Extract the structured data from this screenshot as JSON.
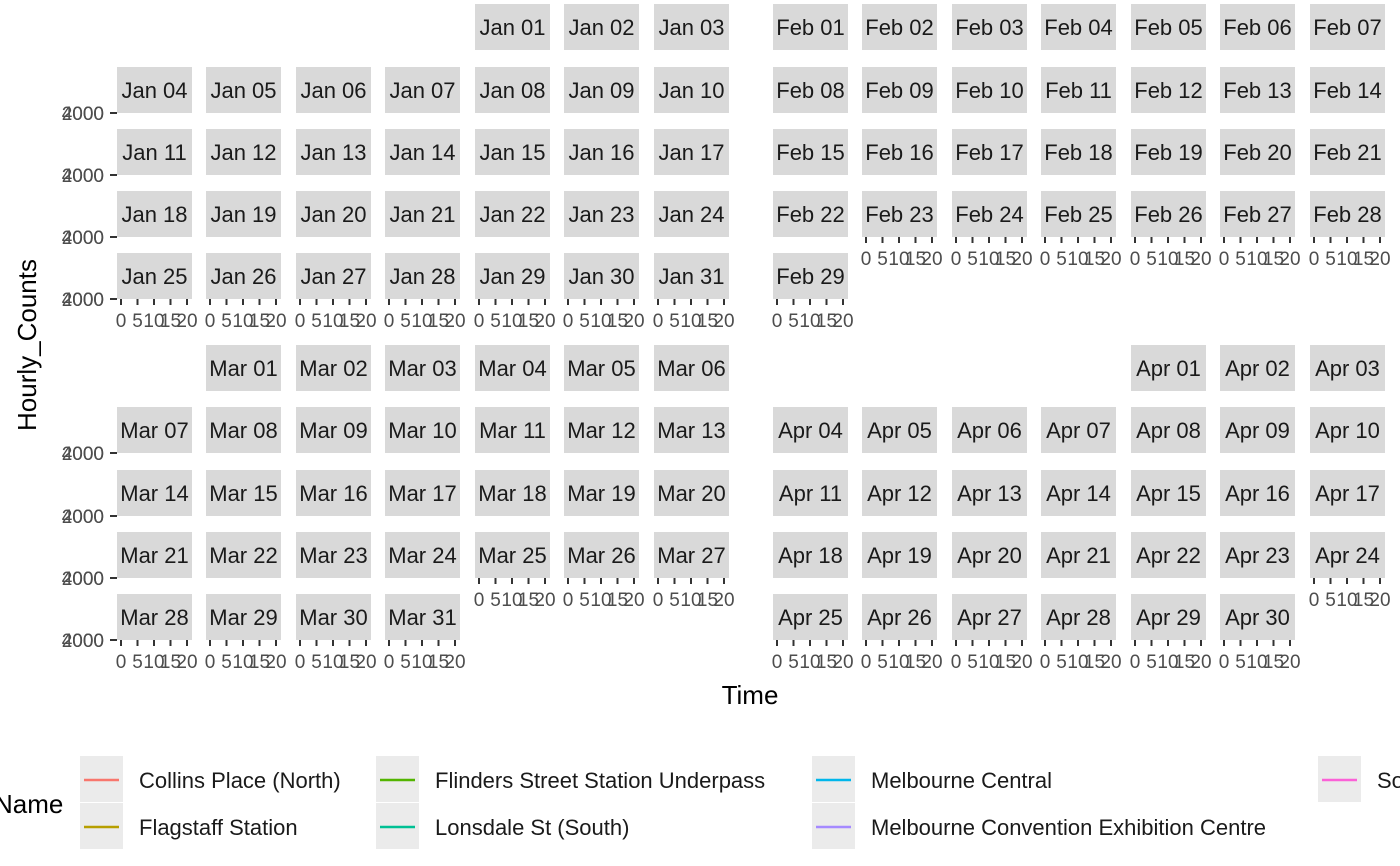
{
  "chart_data": {
    "type": "line",
    "title": "",
    "xlabel": "Time",
    "ylabel": "Hourly_Counts",
    "x_ticks": [
      "0",
      "5",
      "10",
      "15",
      "20"
    ],
    "y_tick_labels": [
      "2000",
      "4000"
    ],
    "legend": {
      "title": "Name",
      "position": "bottom",
      "entries": [
        {
          "name": "Collins Place (North)",
          "color": "#F8766D"
        },
        {
          "name": "Flagstaff Station",
          "color": "#B79F00"
        },
        {
          "name": "Flinders Street Station Underpass",
          "color": "#53B400"
        },
        {
          "name": "Lonsdale St (South)",
          "color": "#00C094"
        },
        {
          "name": "Melbourne Central",
          "color": "#00B6EB"
        },
        {
          "name": "Melbourne Convention Exhibition Centre",
          "color": "#A58AFF"
        },
        {
          "name": "So",
          "color": "#FB61D7"
        }
      ]
    },
    "months": [
      {
        "name": "Jan",
        "first_weekday": 4,
        "days": 31
      },
      {
        "name": "Feb",
        "first_weekday": 0,
        "days": 29
      },
      {
        "name": "Mar",
        "first_weekday": 1,
        "days": 31
      },
      {
        "name": "Apr",
        "first_weekday": 4,
        "days": 30
      }
    ],
    "series": []
  }
}
